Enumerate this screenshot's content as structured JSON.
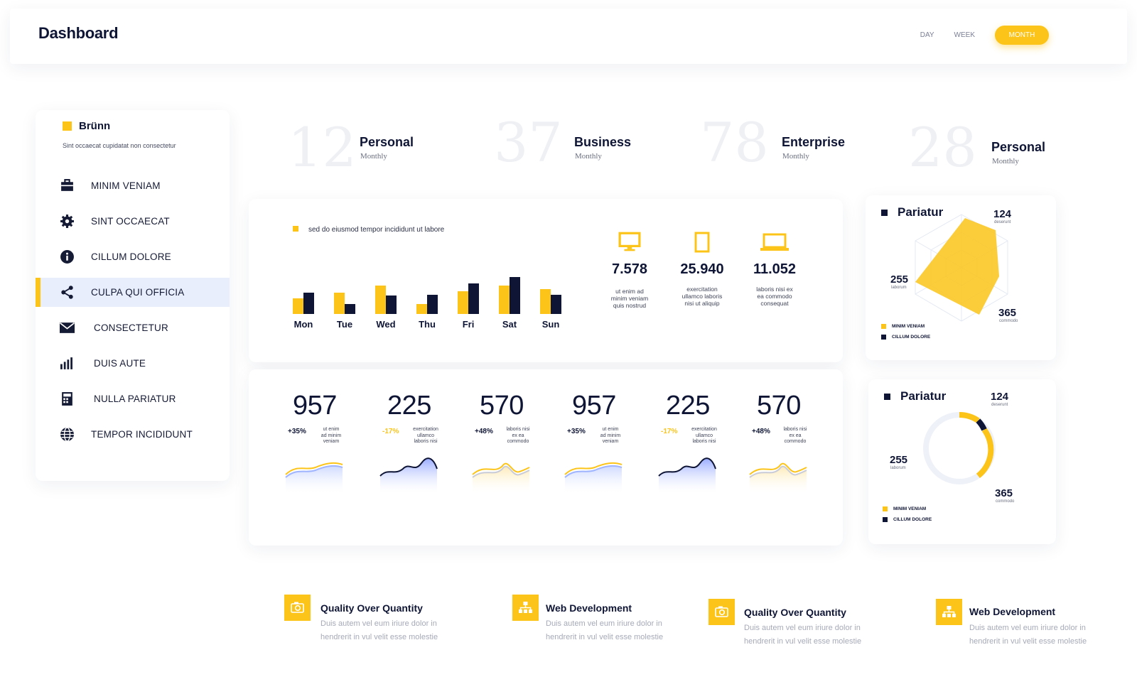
{
  "header": {
    "title": "Dashboard",
    "ranges": [
      "DAY",
      "WEEK",
      "MONTH"
    ],
    "active_range": "MONTH"
  },
  "sidebar": {
    "brand": "Brünn",
    "subtitle": "Sint occaecat cupidatat non consectetur",
    "items": [
      {
        "label": "MINIM VENIAM",
        "icon": "briefcase-icon"
      },
      {
        "label": "SINT OCCAECAT",
        "icon": "gear-icon"
      },
      {
        "label": "CILLUM DOLORE",
        "icon": "info-icon"
      },
      {
        "label": "CULPA QUI OFFICIA",
        "icon": "share-icon",
        "active": true
      },
      {
        "label": "CONSECTETUR",
        "icon": "mail-icon"
      },
      {
        "label": "DUIS AUTE",
        "icon": "bar-chart-icon"
      },
      {
        "label": "NULLA PARIATUR",
        "icon": "calculator-icon"
      },
      {
        "label": "TEMPOR INCIDIDUNT",
        "icon": "globe-icon"
      }
    ]
  },
  "stats": [
    {
      "value": "12",
      "name": "Personal",
      "period": "Monthly"
    },
    {
      "value": "37",
      "name": "Business",
      "period": "Monthly"
    },
    {
      "value": "78",
      "name": "Enterprise",
      "period": "Monthly"
    },
    {
      "value": "28",
      "name": "Personal",
      "period": "Monthly"
    }
  ],
  "bar_chart": {
    "legend": "sed do eiusmod tempor incididunt ut labore",
    "chart_data": {
      "type": "bar",
      "categories": [
        "Mon",
        "Tue",
        "Wed",
        "Thu",
        "Fri",
        "Sat",
        "Sun"
      ],
      "series": [
        {
          "color": "#fcc419",
          "values": [
            22,
            30,
            40,
            14,
            32,
            40,
            35
          ]
        },
        {
          "color": "#0f1535",
          "values": [
            30,
            14,
            26,
            27,
            43,
            52,
            27
          ]
        }
      ]
    }
  },
  "device_metrics": [
    {
      "icon": "monitor-icon",
      "value": "7.578",
      "desc": [
        "ut enim ad",
        "minim veniam",
        "quis nostrud"
      ]
    },
    {
      "icon": "tablet-icon",
      "value": "25.940",
      "desc": [
        "exercitation",
        "ullamco laboris",
        "nisi ut aliquip"
      ]
    },
    {
      "icon": "laptop-icon",
      "value": "11.052",
      "desc": [
        "laboris nisi ex",
        "ea commodo",
        "consequat"
      ]
    }
  ],
  "sparks": [
    {
      "value": "957",
      "pct": "+35%",
      "pct_color": "#0f1535",
      "desc": [
        "ut enim",
        "ad minim",
        "veniam"
      ],
      "style": "gold-blue"
    },
    {
      "value": "225",
      "pct": "-17%",
      "pct_color": "#fcc419",
      "desc": [
        "exercitation",
        "ullamco",
        "laboris nisi"
      ],
      "style": "navy"
    },
    {
      "value": "570",
      "pct": "+48%",
      "pct_color": "#0f1535",
      "desc": [
        "laboris nisi",
        "ex ea",
        "commodo"
      ],
      "style": "gold-peak"
    },
    {
      "value": "957",
      "pct": "+35%",
      "pct_color": "#0f1535",
      "desc": [
        "ut enim",
        "ad minim",
        "veniam"
      ],
      "style": "gold-blue"
    },
    {
      "value": "225",
      "pct": "-17%",
      "pct_color": "#fcc419",
      "desc": [
        "exercitation",
        "ullamco",
        "laboris nisi"
      ],
      "style": "navy"
    },
    {
      "value": "570",
      "pct": "+48%",
      "pct_color": "#0f1535",
      "desc": [
        "laboris nisi",
        "ex ea",
        "commodo"
      ],
      "style": "gold-peak"
    }
  ],
  "radar_card": {
    "title": "Pariatur",
    "top": {
      "value": "124",
      "caption": "deserunt"
    },
    "left": {
      "value": "255",
      "caption": "laborum"
    },
    "bottom": {
      "value": "365",
      "caption": "commodo"
    },
    "legend": [
      "MINIM VENIAM",
      "CILLUM DOLORE"
    ]
  },
  "donut_card": {
    "title": "Pariatur",
    "top": {
      "value": "124",
      "caption": "deserunt"
    },
    "left": {
      "value": "255",
      "caption": "laborum"
    },
    "bottom": {
      "value": "365",
      "caption": "commodo"
    },
    "legend": [
      "MINIM VENIAM",
      "CILLUM DOLORE"
    ]
  },
  "features": [
    {
      "icon": "camera-icon",
      "title": "Quality Over Quantity",
      "desc": [
        "Duis autem vel eum iriure dolor in",
        "hendrerit in vul velit esse molestie"
      ]
    },
    {
      "icon": "sitemap-icon",
      "title": "Web Development",
      "desc": [
        "Duis autem vel eum iriure dolor in",
        "hendrerit in vul velit esse molestie"
      ]
    },
    {
      "icon": "camera-icon",
      "title": "Quality Over Quantity",
      "desc": [
        "Duis autem vel eum iriure dolor in",
        "hendrerit in vul velit esse molestie"
      ]
    },
    {
      "icon": "sitemap-icon",
      "title": "Web Development",
      "desc": [
        "Duis autem vel eum iriure dolor in",
        "hendrerit in vul velit esse molestie"
      ]
    }
  ],
  "colors": {
    "accent": "#fcc419",
    "navy": "#0f1535",
    "active_bg": "#e8eefc"
  }
}
